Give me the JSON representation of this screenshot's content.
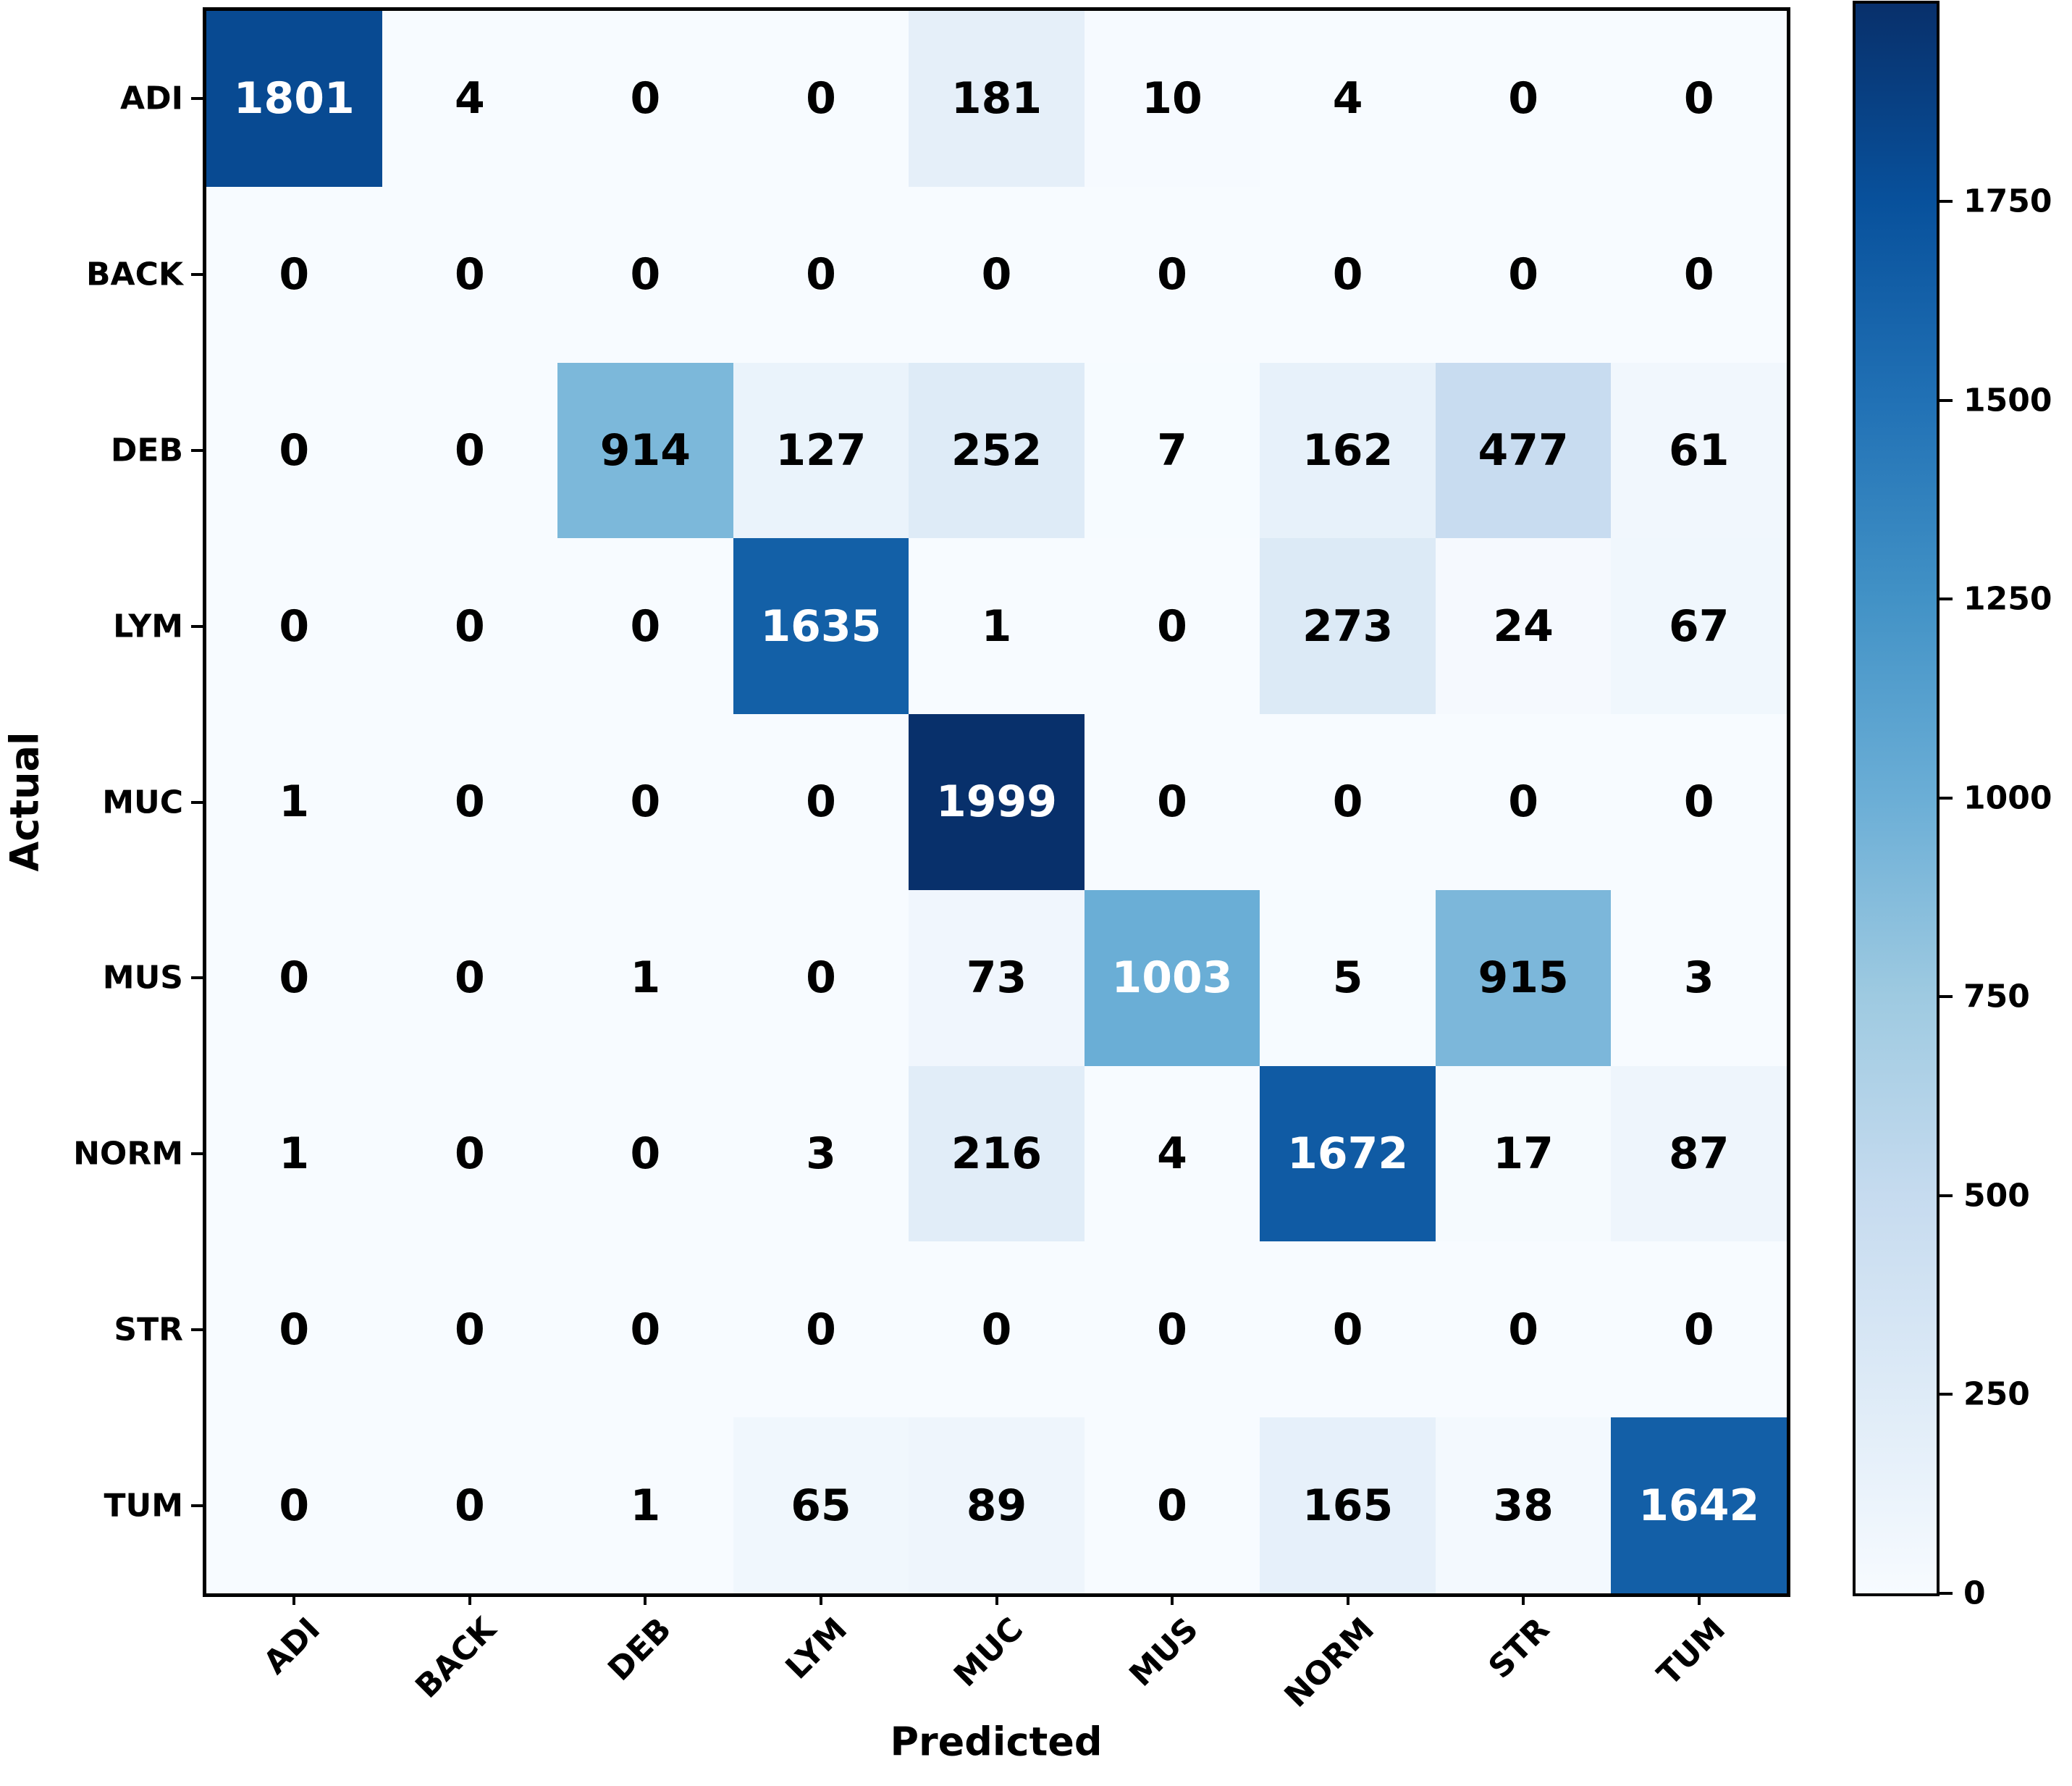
{
  "figure": {
    "background": "#ffffff",
    "description": "confusion matrix heatmap"
  },
  "chart_data": {
    "type": "heatmap",
    "title": "",
    "xlabel": "Predicted",
    "ylabel": "Actual",
    "x_categories": [
      "ADI",
      "BACK",
      "DEB",
      "LYM",
      "MUC",
      "MUS",
      "NORM",
      "STR",
      "TUM"
    ],
    "y_categories": [
      "ADI",
      "BACK",
      "DEB",
      "LYM",
      "MUC",
      "MUS",
      "NORM",
      "STR",
      "TUM"
    ],
    "matrix": [
      [
        1801,
        4,
        0,
        0,
        181,
        10,
        4,
        0,
        0
      ],
      [
        0,
        0,
        0,
        0,
        0,
        0,
        0,
        0,
        0
      ],
      [
        0,
        0,
        914,
        127,
        252,
        7,
        162,
        477,
        61
      ],
      [
        0,
        0,
        0,
        1635,
        1,
        0,
        273,
        24,
        67
      ],
      [
        1,
        0,
        0,
        0,
        1999,
        0,
        0,
        0,
        0
      ],
      [
        0,
        0,
        1,
        0,
        73,
        1003,
        5,
        915,
        3
      ],
      [
        1,
        0,
        0,
        3,
        216,
        4,
        1672,
        17,
        87
      ],
      [
        0,
        0,
        0,
        0,
        0,
        0,
        0,
        0,
        0
      ],
      [
        0,
        0,
        1,
        65,
        89,
        0,
        165,
        38,
        1642
      ]
    ],
    "vmin": 0,
    "vmax": 1999,
    "grid": false,
    "colormap": "Blues",
    "colormap_anchors": [
      "#f7fbff",
      "#deebf7",
      "#c6dbef",
      "#9ecae1",
      "#6baed6",
      "#4292c6",
      "#2171b5",
      "#08519c",
      "#08306b"
    ],
    "annotation_color_dark_cells": "#ffffff",
    "annotation_color_light_cells": "#000000",
    "colorbar": {
      "position": "right",
      "ticks": [
        0,
        250,
        500,
        750,
        1000,
        1250,
        1500,
        1750
      ]
    }
  }
}
